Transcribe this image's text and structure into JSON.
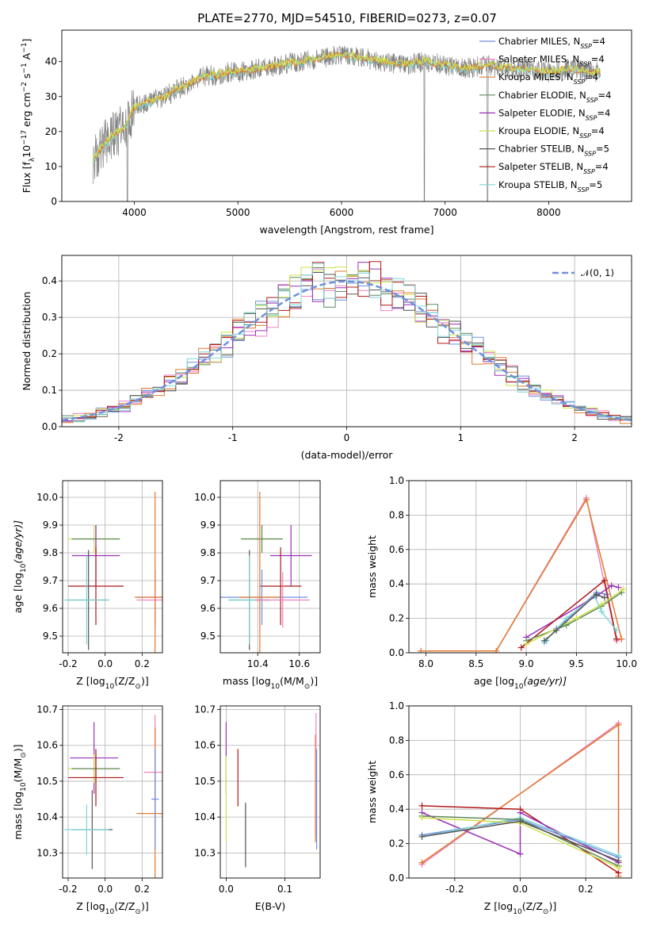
{
  "title": "PLATE=2770, MJD=54510, FIBERID=0273, z=0.07",
  "series_legend": [
    {
      "name": "Chabrier MILES, N",
      "sub": "SSP",
      "suffix": "=4",
      "color": "#6f8fe0"
    },
    {
      "name": "Salpeter MILES, N",
      "sub": "SSP",
      "suffix": "=4",
      "color": "#ef82c0"
    },
    {
      "name": "Kroupa MILES, N",
      "sub": "SSP",
      "suffix": "=4",
      "color": "#e07b2e"
    },
    {
      "name": "Chabrier ELODIE, N",
      "sub": "SSP",
      "suffix": "=4",
      "color": "#5e8a5c"
    },
    {
      "name": "Salpeter ELODIE, N",
      "sub": "SSP",
      "suffix": "=4",
      "color": "#9b30b8"
    },
    {
      "name": "Kroupa ELODIE, N",
      "sub": "SSP",
      "suffix": "=4",
      "color": "#cfe04a"
    },
    {
      "name": "Chabrier STELIB, N",
      "sub": "SSP",
      "suffix": "=5",
      "color": "#555555"
    },
    {
      "name": "Salpeter STELIB, N",
      "sub": "SSP",
      "suffix": "=4",
      "color": "#b01818"
    },
    {
      "name": "Kroupa STELIB, N",
      "sub": "SSP",
      "suffix": "=5",
      "color": "#7fd6d6"
    }
  ],
  "chart_data": [
    {
      "id": "spectrum",
      "type": "line",
      "xlabel": "wavelength [Angstrom, rest frame]",
      "ylabel": "Flux [f",
      "xlim": [
        3300,
        8800
      ],
      "ylim": [
        0,
        49
      ],
      "xticks": [
        4000,
        5000,
        6000,
        7000,
        8000
      ],
      "yticks": [
        0,
        10,
        20,
        30,
        40
      ],
      "data_color": "#7f7f7f",
      "model_colors": [
        "#7fd6d6",
        "#e07b2e",
        "#cfe04a"
      ],
      "model_x": [
        3600,
        3700,
        3800,
        3900,
        4000,
        4100,
        4200,
        4300,
        4400,
        4500,
        4600,
        4700,
        4800,
        4900,
        5000,
        5200,
        5400,
        5600,
        5800,
        6000,
        6200,
        6400,
        6600,
        6800,
        7000,
        7200,
        7400,
        7600,
        7800,
        8000,
        8200,
        8400,
        8500
      ],
      "model_y": [
        12,
        16,
        19,
        21,
        27,
        28,
        29,
        30,
        32,
        33,
        35,
        36,
        36,
        37,
        37,
        38,
        39,
        40,
        41,
        42,
        41,
        40,
        39,
        40,
        39,
        38,
        39,
        38,
        38,
        37,
        38,
        37,
        37
      ]
    },
    {
      "id": "residuals",
      "type": "step",
      "xlabel": "(data-model)/error",
      "ylabel": "Normed distribution",
      "xlim": [
        -2.5,
        2.5
      ],
      "ylim": [
        0,
        0.47
      ],
      "xticks": [
        -2,
        -1,
        0,
        1,
        2
      ],
      "yticks": [
        0.0,
        0.1,
        0.2,
        0.3,
        0.4
      ],
      "bin_width": 0.1,
      "gaussian_label": "𝒩(0, 1)",
      "gaussian_color": "#6f8fe0"
    },
    {
      "id": "age_vs_Z",
      "type": "errorbar",
      "xlabel": "Z [log",
      "ylabel": "age  [log",
      "xlim": [
        -0.23,
        0.31
      ],
      "ylim": [
        9.44,
        10.06
      ],
      "xticks": [
        -0.2,
        0.0,
        0.2
      ],
      "yticks": [
        9.5,
        9.6,
        9.7,
        9.8,
        9.9,
        10.0
      ],
      "points": [
        {
          "x": -0.06,
          "y": 9.85,
          "xerr": 0.14,
          "yerr": 0.05,
          "c": "#cfe04a"
        },
        {
          "x": -0.05,
          "y": 9.85,
          "xerr": 0.13,
          "yerr": 0.05,
          "c": "#5e8a5c"
        },
        {
          "x": -0.05,
          "y": 9.79,
          "xerr": 0.13,
          "yerr": 0.11,
          "c": "#9b30b8"
        },
        {
          "x": -0.05,
          "y": 9.68,
          "xerr": 0.15,
          "yerr": 0.14,
          "c": "#b01818"
        },
        {
          "x": -0.09,
          "y": 9.63,
          "xerr": 0.11,
          "yerr": 0.18,
          "c": "#555555"
        },
        {
          "x": -0.1,
          "y": 9.63,
          "xerr": 0.12,
          "yerr": 0.16,
          "c": "#7fd6d6"
        },
        {
          "x": 0.27,
          "y": 9.64,
          "xerr": 0.1,
          "yerr": 0.1,
          "c": "#6f8fe0"
        },
        {
          "x": 0.27,
          "y": 9.63,
          "xerr": 0.1,
          "yerr": 0.1,
          "c": "#ef82c0"
        },
        {
          "x": 0.27,
          "y": 9.64,
          "xerr": 0.11,
          "yerr": 0.38,
          "c": "#e07b2e"
        }
      ]
    },
    {
      "id": "age_vs_mass",
      "type": "errorbar",
      "xlabel": "mass [log",
      "ylabel": "",
      "xlim": [
        10.22,
        10.7
      ],
      "ylim": [
        9.44,
        10.06
      ],
      "xticks": [
        10.4,
        10.6
      ],
      "yticks": [
        9.5,
        9.6,
        9.7,
        9.8,
        9.9,
        10.0
      ],
      "points": [
        {
          "x": 10.42,
          "y": 9.85,
          "xerr": 0.1,
          "yerr": 0.05,
          "c": "#cfe04a"
        },
        {
          "x": 10.42,
          "y": 9.85,
          "xerr": 0.1,
          "yerr": 0.05,
          "c": "#5e8a5c"
        },
        {
          "x": 10.56,
          "y": 9.79,
          "xerr": 0.1,
          "yerr": 0.11,
          "c": "#9b30b8"
        },
        {
          "x": 10.51,
          "y": 9.68,
          "xerr": 0.1,
          "yerr": 0.14,
          "c": "#b01818"
        },
        {
          "x": 10.36,
          "y": 9.63,
          "xerr": 0.1,
          "yerr": 0.18,
          "c": "#555555"
        },
        {
          "x": 10.36,
          "y": 9.63,
          "xerr": 0.1,
          "yerr": 0.16,
          "c": "#7fd6d6"
        },
        {
          "x": 10.42,
          "y": 9.64,
          "xerr": 0.22,
          "yerr": 0.1,
          "c": "#6f8fe0"
        },
        {
          "x": 10.52,
          "y": 9.63,
          "xerr": 0.13,
          "yerr": 0.1,
          "c": "#ef82c0"
        },
        {
          "x": 10.41,
          "y": 9.64,
          "xerr": 0.1,
          "yerr": 0.38,
          "c": "#e07b2e"
        }
      ]
    },
    {
      "id": "weight_vs_age",
      "type": "line",
      "xlabel": "age  [log",
      "ylabel": "mass weight",
      "xlim": [
        7.83,
        10.05
      ],
      "ylim": [
        0,
        1
      ],
      "xticks": [
        8.0,
        8.5,
        9.0,
        9.5,
        10.0
      ],
      "yticks": [
        0.0,
        0.2,
        0.4,
        0.6,
        0.8,
        1.0
      ],
      "series": [
        {
          "c": "#ef82c0",
          "x": [
            7.95,
            8.7,
            9.6,
            9.9,
            9.95
          ],
          "y": [
            0.01,
            0.01,
            0.9,
            0.07,
            0.08
          ]
        },
        {
          "c": "#e07b2e",
          "x": [
            7.95,
            8.7,
            9.6,
            9.95
          ],
          "y": [
            0.01,
            0.01,
            0.89,
            0.08
          ]
        },
        {
          "c": "#6f8fe0",
          "x": [
            9.2,
            9.3,
            9.7,
            9.8
          ],
          "y": [
            0.07,
            0.14,
            0.35,
            0.34
          ]
        },
        {
          "c": "#9b30b8",
          "x": [
            9.0,
            9.7,
            9.85,
            9.92
          ],
          "y": [
            0.09,
            0.33,
            0.39,
            0.38
          ]
        },
        {
          "c": "#b01818",
          "x": [
            8.95,
            9.78,
            9.9
          ],
          "y": [
            0.03,
            0.42,
            0.08
          ]
        },
        {
          "c": "#5e8a5c",
          "x": [
            9.0,
            9.4,
            9.75,
            9.95
          ],
          "y": [
            0.07,
            0.16,
            0.27,
            0.35
          ]
        },
        {
          "c": "#cfe04a",
          "x": [
            9.0,
            9.5,
            9.75,
            9.97
          ],
          "y": [
            0.05,
            0.2,
            0.28,
            0.37
          ]
        },
        {
          "c": "#7fd6d6",
          "x": [
            9.18,
            9.4,
            9.68,
            9.75,
            9.9
          ],
          "y": [
            0.06,
            0.2,
            0.33,
            0.24,
            0.13
          ]
        },
        {
          "c": "#555555",
          "x": [
            9.18,
            9.3,
            9.7,
            9.78
          ],
          "y": [
            0.07,
            0.13,
            0.34,
            0.32
          ]
        }
      ]
    },
    {
      "id": "mass_vs_Z",
      "type": "errorbar",
      "xlabel": "Z [log",
      "ylabel": "mass [log",
      "xlim": [
        -0.23,
        0.31
      ],
      "ylim": [
        10.23,
        10.71
      ],
      "xticks": [
        -0.2,
        0.0,
        0.2
      ],
      "yticks": [
        10.3,
        10.4,
        10.5,
        10.6,
        10.7
      ],
      "points": [
        {
          "x": -0.06,
          "y": 10.565,
          "xerr": 0.13,
          "yerr": 0.1,
          "c": "#9b30b8"
        },
        {
          "x": -0.06,
          "y": 10.535,
          "xerr": 0.14,
          "yerr": 0.04,
          "c": "#cfe04a"
        },
        {
          "x": -0.05,
          "y": 10.535,
          "xerr": 0.13,
          "yerr": 0.04,
          "c": "#5e8a5c"
        },
        {
          "x": -0.05,
          "y": 10.51,
          "xerr": 0.15,
          "yerr": 0.08,
          "c": "#b01818"
        },
        {
          "x": -0.07,
          "y": 10.365,
          "xerr": 0.11,
          "yerr": 0.11,
          "c": "#555555"
        },
        {
          "x": -0.1,
          "y": 10.365,
          "xerr": 0.12,
          "yerr": 0.07,
          "c": "#7fd6d6"
        },
        {
          "x": 0.27,
          "y": 10.525,
          "xerr": 0.06,
          "yerr": 0.16,
          "c": "#ef82c0"
        },
        {
          "x": 0.27,
          "y": 10.41,
          "xerr": 0.1,
          "yerr": 0.24,
          "c": "#e07b2e"
        },
        {
          "x": 0.27,
          "y": 10.45,
          "xerr": 0.02,
          "yerr": 0.14,
          "c": "#6f8fe0"
        }
      ]
    },
    {
      "id": "mass_vs_EBV",
      "type": "errorbar",
      "xlabel": "E(B-V)",
      "ylabel": "",
      "xlim": [
        -0.01,
        0.16
      ],
      "ylim": [
        10.23,
        10.71
      ],
      "xticks": [
        0.0,
        0.1
      ],
      "yticks": [
        10.3,
        10.4,
        10.5,
        10.6,
        10.7
      ],
      "points": [
        {
          "x": 0.0,
          "y": 10.565,
          "yerr": 0.1,
          "c": "#9b30b8"
        },
        {
          "x": 0.0,
          "y": 10.45,
          "yerr": 0.12,
          "c": "#cfe04a"
        },
        {
          "x": 0.02,
          "y": 10.51,
          "yerr": 0.08,
          "c": "#b01818"
        },
        {
          "x": 0.033,
          "y": 10.365,
          "yerr": 0.07,
          "c": "#7fd6d6"
        },
        {
          "x": 0.033,
          "y": 10.35,
          "yerr": 0.09,
          "c": "#555555"
        },
        {
          "x": 0.152,
          "y": 10.48,
          "yerr": 0.15,
          "c": "#e07b2e"
        },
        {
          "x": 0.153,
          "y": 10.52,
          "yerr": 0.17,
          "c": "#ef82c0"
        },
        {
          "x": 0.154,
          "y": 10.45,
          "yerr": 0.14,
          "c": "#6f8fe0"
        }
      ]
    },
    {
      "id": "weight_vs_Z",
      "type": "line",
      "xlabel": "Z [log",
      "ylabel": "mass weight",
      "xlim": [
        -0.34,
        0.34
      ],
      "ylim": [
        0,
        1
      ],
      "xticks": [
        -0.2,
        0.0,
        0.2
      ],
      "yticks": [
        0.0,
        0.2,
        0.4,
        0.6,
        0.8,
        1.0
      ],
      "series": [
        {
          "c": "#ef82c0",
          "x": [
            -0.3,
            0.3,
            0.3
          ],
          "y": [
            0.08,
            0.9,
            0.01
          ]
        },
        {
          "c": "#e07b2e",
          "x": [
            -0.3,
            0.3,
            0.3
          ],
          "y": [
            0.09,
            0.89,
            0.01
          ]
        },
        {
          "c": "#b01818",
          "x": [
            -0.3,
            0.0,
            0.3
          ],
          "y": [
            0.42,
            0.4,
            0.03
          ]
        },
        {
          "c": "#9b30b8",
          "x": [
            -0.3,
            0.0,
            0.0,
            0.3
          ],
          "y": [
            0.38,
            0.14,
            0.38,
            0.09
          ]
        },
        {
          "c": "#6f8fe0",
          "x": [
            -0.3,
            0.0,
            0.3
          ],
          "y": [
            0.25,
            0.34,
            0.12
          ]
        },
        {
          "c": "#7fd6d6",
          "x": [
            -0.3,
            0.0,
            0.3
          ],
          "y": [
            0.24,
            0.35,
            0.13
          ]
        },
        {
          "c": "#5e8a5c",
          "x": [
            -0.3,
            0.0,
            0.3
          ],
          "y": [
            0.36,
            0.34,
            0.07
          ]
        },
        {
          "c": "#cfe04a",
          "x": [
            -0.3,
            0.0,
            0.3
          ],
          "y": [
            0.35,
            0.32,
            0.06
          ]
        },
        {
          "c": "#555555",
          "x": [
            -0.3,
            0.0,
            0.3
          ],
          "y": [
            0.24,
            0.33,
            0.1
          ]
        }
      ]
    }
  ]
}
